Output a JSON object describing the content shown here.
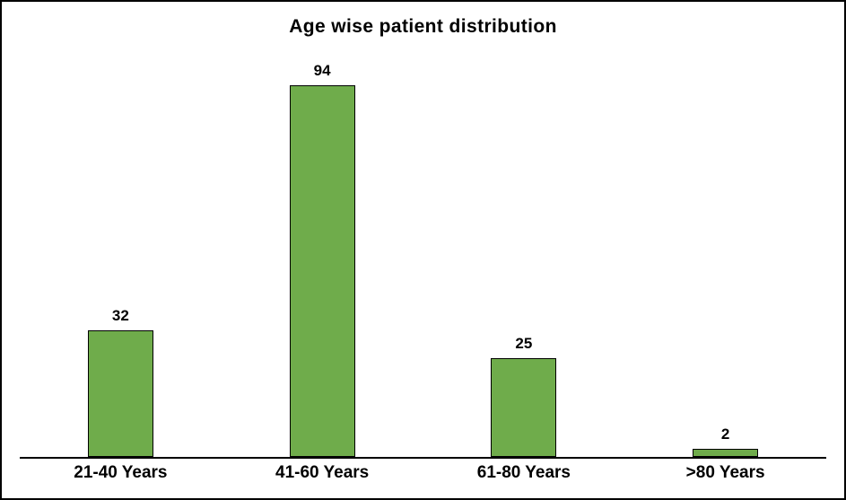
{
  "chart_data": {
    "type": "bar",
    "title": "Age wise patient distribution",
    "categories": [
      "21-40 Years",
      "41-60 Years",
      "61-80 Years",
      ">80 Years"
    ],
    "values": [
      32,
      94,
      25,
      2
    ],
    "xlabel": "",
    "ylabel": "",
    "ylim": [
      0,
      100
    ],
    "grid": false,
    "legend": false,
    "data_labels": true,
    "colors": {
      "bar_fill": "#6FAC4B",
      "bar_border": "#000000",
      "axis_line": "#000000",
      "frame_border": "#000000",
      "background": "#FFFFFF",
      "text": "#000000"
    }
  }
}
